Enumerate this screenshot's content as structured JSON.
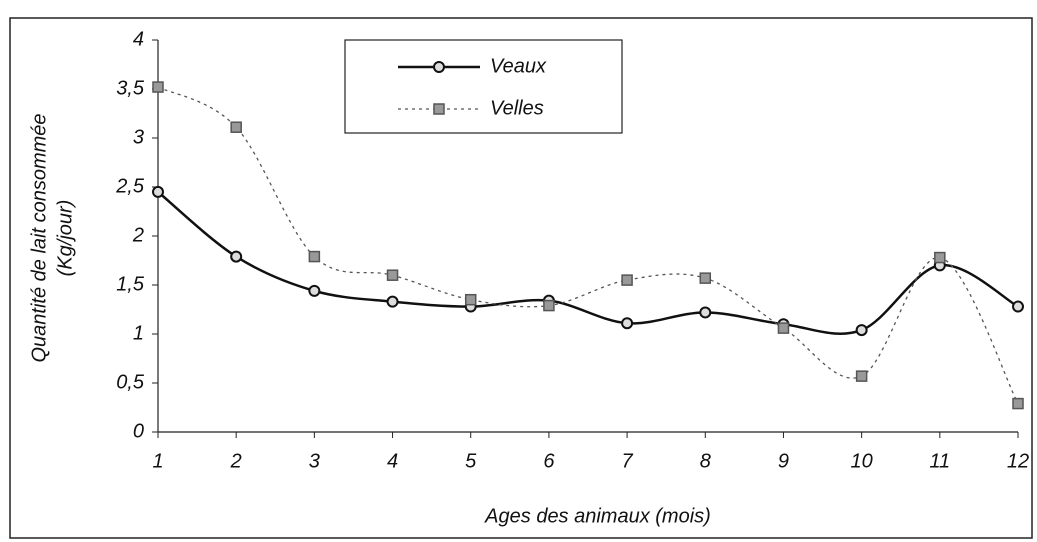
{
  "chart_data": {
    "type": "line",
    "xlabel": "Ages des animaux (mois)",
    "ylabel": [
      "Quantité de lait consommée",
      "(Kg/jour)"
    ],
    "x": [
      1,
      2,
      3,
      4,
      5,
      6,
      7,
      8,
      9,
      10,
      11,
      12
    ],
    "xlim": [
      1,
      12
    ],
    "xticks": [
      1,
      2,
      3,
      4,
      5,
      6,
      7,
      8,
      9,
      10,
      11,
      12
    ],
    "ylim": [
      0,
      4
    ],
    "yticks": [
      0,
      {
        "value": 0.5,
        "label": "0,5"
      },
      1,
      {
        "value": 1.5,
        "label": "1,5"
      },
      2,
      {
        "value": 2.5,
        "label": "2,5"
      },
      3,
      {
        "value": 3.5,
        "label": "3,5"
      },
      4
    ],
    "series": [
      {
        "name": "Veaux",
        "color": "#111111",
        "values": [
          2.45,
          1.79,
          1.44,
          1.33,
          1.28,
          1.34,
          1.11,
          1.22,
          1.1,
          1.04,
          1.7,
          1.28
        ]
      },
      {
        "name": "Velles",
        "color": "#555555",
        "values": [
          3.52,
          3.11,
          1.79,
          1.6,
          1.35,
          1.29,
          1.55,
          1.57,
          1.06,
          0.57,
          1.78,
          0.29
        ]
      }
    ]
  }
}
